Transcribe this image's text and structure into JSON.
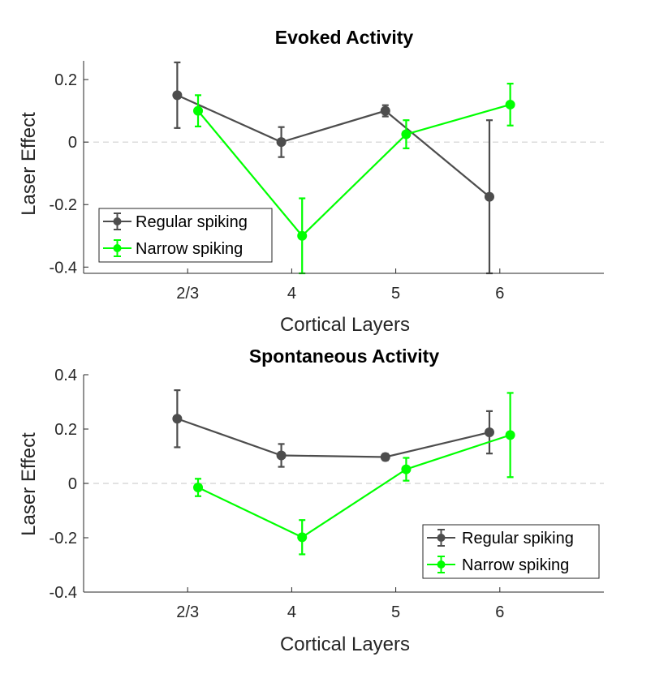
{
  "chart_data": [
    {
      "type": "line",
      "title": "Evoked Activity",
      "xlabel": "Cortical Layers",
      "ylabel": "Laser Effect",
      "categories": [
        "2/3",
        "4",
        "5",
        "6"
      ],
      "xlim": [
        0,
        5
      ],
      "ylim": [
        -0.42,
        0.26
      ],
      "yticks": [
        0.2,
        0,
        -0.2,
        -0.4
      ],
      "ytick_labels": [
        "0.2",
        "0",
        "-0.2",
        "-0.4"
      ],
      "zero_line": true,
      "legend_position": "bottom-left",
      "series": [
        {
          "name": "Regular spiking",
          "color": "#4d4d4d",
          "x": [
            0.9,
            1.9,
            2.9,
            3.9
          ],
          "values": [
            0.15,
            0.0,
            0.1,
            -0.175
          ],
          "err": [
            0.105,
            0.048,
            0.018,
            0.245
          ]
        },
        {
          "name": "Narrow spiking",
          "color": "#00ff00",
          "x": [
            1.1,
            2.1,
            3.1,
            4.1
          ],
          "values": [
            0.1,
            -0.3,
            0.025,
            0.12
          ],
          "err": [
            0.05,
            0.12,
            0.045,
            0.067
          ]
        }
      ]
    },
    {
      "type": "line",
      "title": "Spontaneous Activity",
      "xlabel": "Cortical Layers",
      "ylabel": "Laser Effect",
      "categories": [
        "2/3",
        "4",
        "5",
        "6"
      ],
      "xlim": [
        0,
        5
      ],
      "ylim": [
        -0.4,
        0.4
      ],
      "yticks": [
        0.4,
        0.2,
        0,
        -0.2,
        -0.4
      ],
      "ytick_labels": [
        "0.4",
        "0.2",
        "0",
        "-0.2",
        "-0.4"
      ],
      "zero_line": true,
      "legend_position": "bottom-right",
      "series": [
        {
          "name": "Regular spiking",
          "color": "#4d4d4d",
          "x": [
            0.9,
            1.9,
            2.9,
            3.9
          ],
          "values": [
            0.238,
            0.103,
            0.097,
            0.188
          ],
          "err": [
            0.105,
            0.042,
            0.012,
            0.078
          ]
        },
        {
          "name": "Narrow spiking",
          "color": "#00ff00",
          "x": [
            1.1,
            2.1,
            3.1,
            4.1
          ],
          "values": [
            -0.015,
            -0.198,
            0.052,
            0.178
          ],
          "err": [
            0.032,
            0.063,
            0.042,
            0.155
          ]
        }
      ]
    }
  ]
}
